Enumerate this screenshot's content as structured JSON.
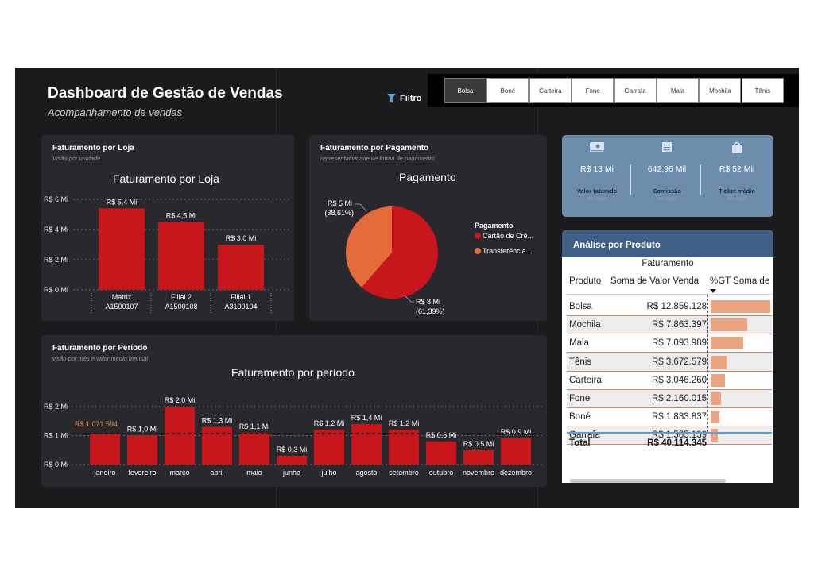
{
  "header": {
    "title": "Dashboard de Gestão de Vendas",
    "subtitle": "Acompanhamento de vendas",
    "filter_label": "Filtro"
  },
  "slicer": {
    "options": [
      "Bolsa",
      "Boné",
      "Carteira",
      "Fone",
      "Garrafa",
      "Mala",
      "Mochila",
      "Tênis"
    ],
    "selected": "Bolsa"
  },
  "cards": {
    "loja": {
      "title": "Faturamento por Loja",
      "subtitle": "Visão por unidade"
    },
    "pagamento": {
      "title": "Faturamento por Pagamento",
      "subtitle": "representatividade de forma de pagamento"
    },
    "periodo": {
      "title": "Faturamento por Período",
      "subtitle": "visão por mês e valor médio mensal"
    }
  },
  "kpis": [
    {
      "value": "R$ 13 Mi",
      "label": "Valor faturado",
      "unit": "em reais",
      "icon": "money-icon"
    },
    {
      "value": "642,96 Mil",
      "label": "Comissão",
      "unit": "em reais",
      "icon": "document-icon"
    },
    {
      "value": "R$ 52 Mil",
      "label": "Ticket médio",
      "unit": "em reais",
      "icon": "shopping-bag-icon"
    }
  ],
  "produto": {
    "title": "Análise por Produto",
    "group_header": "Faturamento",
    "columns": [
      "Produto",
      "Soma de Valor Venda",
      "%GT Soma de"
    ],
    "rows": [
      {
        "name": "Bolsa",
        "value": "R$ 12.859.128",
        "pct": 32.06
      },
      {
        "name": "Mochila",
        "value": "R$ 7.863.397",
        "pct": 19.6
      },
      {
        "name": "Mala",
        "value": "R$ 7.093.989",
        "pct": 17.68
      },
      {
        "name": "Tênis",
        "value": "R$ 3.672.579",
        "pct": 9.16
      },
      {
        "name": "Carteira",
        "value": "R$ 3.046.260",
        "pct": 7.59
      },
      {
        "name": "Fone",
        "value": "R$ 2.160.015",
        "pct": 5.38
      },
      {
        "name": "Boné",
        "value": "R$ 1.833.837",
        "pct": 4.57
      },
      {
        "name": "Garrafa",
        "value": "R$ 1.585.139",
        "pct": 3.95
      }
    ],
    "total_label": "Total",
    "total_value": "R$ 40.114.345"
  },
  "chart_data": [
    {
      "type": "bar",
      "title": "Faturamento por Loja",
      "categories": [
        [
          "Matriz",
          "A1500107"
        ],
        [
          "Filial 2",
          "A1500108"
        ],
        [
          "Filial 1",
          "A3100104"
        ]
      ],
      "values": [
        5.4,
        4.5,
        3.0
      ],
      "data_labels": [
        "R$ 5,4 Mi",
        "R$ 4,5 Mi",
        "R$ 3,0 Mi"
      ],
      "y_ticks": [
        "R$ 0 Mi",
        "R$ 2 Mi",
        "R$ 4 Mi",
        "R$ 6 Mi"
      ],
      "ylim": [
        0,
        6
      ],
      "unit": "R$ Mi",
      "color": "#c8171c",
      "grid": true
    },
    {
      "type": "pie",
      "title": "Pagamento",
      "legend_title": "Pagamento",
      "legend_placement": "right",
      "series": [
        {
          "name": "Cartão de Crédito",
          "legend_label": "Cartão de Crê...",
          "value": 8,
          "percent": 61.39,
          "label": "R$ 8 Mi",
          "pct_label": "(61,39%)",
          "color": "#c8171c"
        },
        {
          "name": "Transferência",
          "legend_label": "Transferência...",
          "value": 5,
          "percent": 38.61,
          "label": "R$ 5 Mi",
          "pct_label": "(38,61%)",
          "color": "#e56b3a"
        }
      ]
    },
    {
      "type": "bar",
      "title": "Faturamento por período",
      "categories": [
        "janeiro",
        "fevereiro",
        "março",
        "abril",
        "maio",
        "junho",
        "julho",
        "agosto",
        "setembro",
        "outubro",
        "novembro",
        "dezembro"
      ],
      "values": [
        1.05,
        1.0,
        2.0,
        1.3,
        1.1,
        0.3,
        1.2,
        1.4,
        1.2,
        0.8,
        0.5,
        0.9
      ],
      "data_labels": [
        "",
        "R$ 1,0 Mi",
        "R$ 2,0 Mi",
        "R$ 1,3 Mi",
        "R$ 1,1 Mi",
        "R$ 0,3 Mi",
        "R$ 1,2 Mi",
        "R$ 1,4 Mi",
        "R$ 1,2 Mi",
        "R$ 0,8 Mi",
        "R$ 0,5 Mi",
        "R$ 0,9 Mi"
      ],
      "average_line": {
        "value": 1.071594,
        "label": "R$ 1.071.594",
        "color": "#e8904a"
      },
      "y_ticks": [
        "R$ 0 Mi",
        "R$ 1 Mi",
        "R$ 2 Mi"
      ],
      "ylim": [
        0,
        2.0
      ],
      "unit": "R$ Mi",
      "color": "#c8171c",
      "grid": true
    }
  ]
}
